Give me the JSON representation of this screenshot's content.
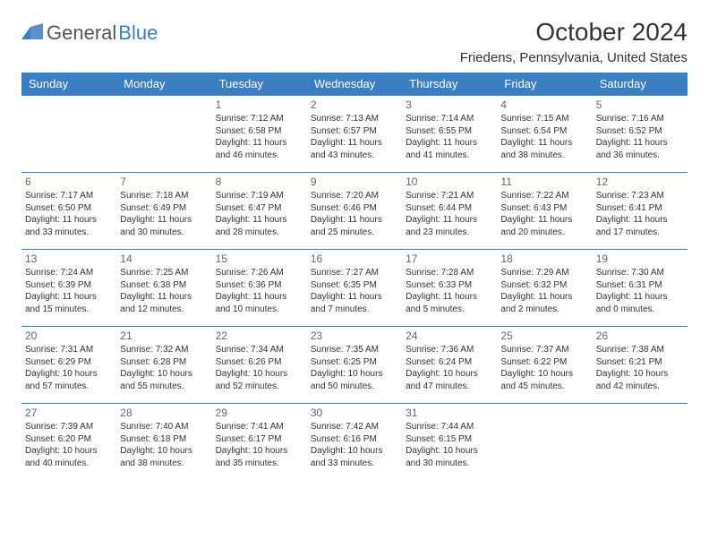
{
  "logo": {
    "part1": "General",
    "part2": "Blue"
  },
  "title": "October 2024",
  "location": "Friedens, Pennsylvania, United States",
  "headers": [
    "Sunday",
    "Monday",
    "Tuesday",
    "Wednesday",
    "Thursday",
    "Friday",
    "Saturday"
  ],
  "colors": {
    "accent": "#3a7fc4",
    "text": "#333333",
    "bg": "#ffffff"
  },
  "weeks": [
    [
      null,
      null,
      {
        "n": "1",
        "sr": "Sunrise: 7:12 AM",
        "ss": "Sunset: 6:58 PM",
        "d1": "Daylight: 11 hours",
        "d2": "and 46 minutes."
      },
      {
        "n": "2",
        "sr": "Sunrise: 7:13 AM",
        "ss": "Sunset: 6:57 PM",
        "d1": "Daylight: 11 hours",
        "d2": "and 43 minutes."
      },
      {
        "n": "3",
        "sr": "Sunrise: 7:14 AM",
        "ss": "Sunset: 6:55 PM",
        "d1": "Daylight: 11 hours",
        "d2": "and 41 minutes."
      },
      {
        "n": "4",
        "sr": "Sunrise: 7:15 AM",
        "ss": "Sunset: 6:54 PM",
        "d1": "Daylight: 11 hours",
        "d2": "and 38 minutes."
      },
      {
        "n": "5",
        "sr": "Sunrise: 7:16 AM",
        "ss": "Sunset: 6:52 PM",
        "d1": "Daylight: 11 hours",
        "d2": "and 36 minutes."
      }
    ],
    [
      {
        "n": "6",
        "sr": "Sunrise: 7:17 AM",
        "ss": "Sunset: 6:50 PM",
        "d1": "Daylight: 11 hours",
        "d2": "and 33 minutes."
      },
      {
        "n": "7",
        "sr": "Sunrise: 7:18 AM",
        "ss": "Sunset: 6:49 PM",
        "d1": "Daylight: 11 hours",
        "d2": "and 30 minutes."
      },
      {
        "n": "8",
        "sr": "Sunrise: 7:19 AM",
        "ss": "Sunset: 6:47 PM",
        "d1": "Daylight: 11 hours",
        "d2": "and 28 minutes."
      },
      {
        "n": "9",
        "sr": "Sunrise: 7:20 AM",
        "ss": "Sunset: 6:46 PM",
        "d1": "Daylight: 11 hours",
        "d2": "and 25 minutes."
      },
      {
        "n": "10",
        "sr": "Sunrise: 7:21 AM",
        "ss": "Sunset: 6:44 PM",
        "d1": "Daylight: 11 hours",
        "d2": "and 23 minutes."
      },
      {
        "n": "11",
        "sr": "Sunrise: 7:22 AM",
        "ss": "Sunset: 6:43 PM",
        "d1": "Daylight: 11 hours",
        "d2": "and 20 minutes."
      },
      {
        "n": "12",
        "sr": "Sunrise: 7:23 AM",
        "ss": "Sunset: 6:41 PM",
        "d1": "Daylight: 11 hours",
        "d2": "and 17 minutes."
      }
    ],
    [
      {
        "n": "13",
        "sr": "Sunrise: 7:24 AM",
        "ss": "Sunset: 6:39 PM",
        "d1": "Daylight: 11 hours",
        "d2": "and 15 minutes."
      },
      {
        "n": "14",
        "sr": "Sunrise: 7:25 AM",
        "ss": "Sunset: 6:38 PM",
        "d1": "Daylight: 11 hours",
        "d2": "and 12 minutes."
      },
      {
        "n": "15",
        "sr": "Sunrise: 7:26 AM",
        "ss": "Sunset: 6:36 PM",
        "d1": "Daylight: 11 hours",
        "d2": "and 10 minutes."
      },
      {
        "n": "16",
        "sr": "Sunrise: 7:27 AM",
        "ss": "Sunset: 6:35 PM",
        "d1": "Daylight: 11 hours",
        "d2": "and 7 minutes."
      },
      {
        "n": "17",
        "sr": "Sunrise: 7:28 AM",
        "ss": "Sunset: 6:33 PM",
        "d1": "Daylight: 11 hours",
        "d2": "and 5 minutes."
      },
      {
        "n": "18",
        "sr": "Sunrise: 7:29 AM",
        "ss": "Sunset: 6:32 PM",
        "d1": "Daylight: 11 hours",
        "d2": "and 2 minutes."
      },
      {
        "n": "19",
        "sr": "Sunrise: 7:30 AM",
        "ss": "Sunset: 6:31 PM",
        "d1": "Daylight: 11 hours",
        "d2": "and 0 minutes."
      }
    ],
    [
      {
        "n": "20",
        "sr": "Sunrise: 7:31 AM",
        "ss": "Sunset: 6:29 PM",
        "d1": "Daylight: 10 hours",
        "d2": "and 57 minutes."
      },
      {
        "n": "21",
        "sr": "Sunrise: 7:32 AM",
        "ss": "Sunset: 6:28 PM",
        "d1": "Daylight: 10 hours",
        "d2": "and 55 minutes."
      },
      {
        "n": "22",
        "sr": "Sunrise: 7:34 AM",
        "ss": "Sunset: 6:26 PM",
        "d1": "Daylight: 10 hours",
        "d2": "and 52 minutes."
      },
      {
        "n": "23",
        "sr": "Sunrise: 7:35 AM",
        "ss": "Sunset: 6:25 PM",
        "d1": "Daylight: 10 hours",
        "d2": "and 50 minutes."
      },
      {
        "n": "24",
        "sr": "Sunrise: 7:36 AM",
        "ss": "Sunset: 6:24 PM",
        "d1": "Daylight: 10 hours",
        "d2": "and 47 minutes."
      },
      {
        "n": "25",
        "sr": "Sunrise: 7:37 AM",
        "ss": "Sunset: 6:22 PM",
        "d1": "Daylight: 10 hours",
        "d2": "and 45 minutes."
      },
      {
        "n": "26",
        "sr": "Sunrise: 7:38 AM",
        "ss": "Sunset: 6:21 PM",
        "d1": "Daylight: 10 hours",
        "d2": "and 42 minutes."
      }
    ],
    [
      {
        "n": "27",
        "sr": "Sunrise: 7:39 AM",
        "ss": "Sunset: 6:20 PM",
        "d1": "Daylight: 10 hours",
        "d2": "and 40 minutes."
      },
      {
        "n": "28",
        "sr": "Sunrise: 7:40 AM",
        "ss": "Sunset: 6:18 PM",
        "d1": "Daylight: 10 hours",
        "d2": "and 38 minutes."
      },
      {
        "n": "29",
        "sr": "Sunrise: 7:41 AM",
        "ss": "Sunset: 6:17 PM",
        "d1": "Daylight: 10 hours",
        "d2": "and 35 minutes."
      },
      {
        "n": "30",
        "sr": "Sunrise: 7:42 AM",
        "ss": "Sunset: 6:16 PM",
        "d1": "Daylight: 10 hours",
        "d2": "and 33 minutes."
      },
      {
        "n": "31",
        "sr": "Sunrise: 7:44 AM",
        "ss": "Sunset: 6:15 PM",
        "d1": "Daylight: 10 hours",
        "d2": "and 30 minutes."
      },
      null,
      null
    ]
  ]
}
